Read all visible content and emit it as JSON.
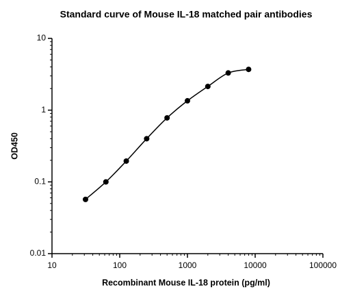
{
  "chart_data": {
    "type": "scatter",
    "title": "Standard curve of Mouse IL-18 matched pair antibodies",
    "x_label": "Recombinant Mouse IL-18 protein (pg/ml)",
    "y_label": "OD450",
    "x": [
      31.25,
      62.5,
      125,
      250,
      500,
      1000,
      2000,
      4000,
      8000
    ],
    "series": [
      {
        "name": "OD450",
        "color": "#000000",
        "values": [
          0.057,
          0.1,
          0.195,
          0.4,
          0.78,
          1.35,
          2.14,
          3.3,
          3.7
        ]
      }
    ],
    "x_log": true,
    "y_log": true,
    "xlim": [
      10,
      100000
    ],
    "ylim": [
      0.01,
      10
    ],
    "xticks": [
      10,
      100,
      1000,
      10000,
      100000
    ],
    "yticks": [
      0.01,
      0.1,
      1,
      10
    ],
    "fit_curve": true
  }
}
